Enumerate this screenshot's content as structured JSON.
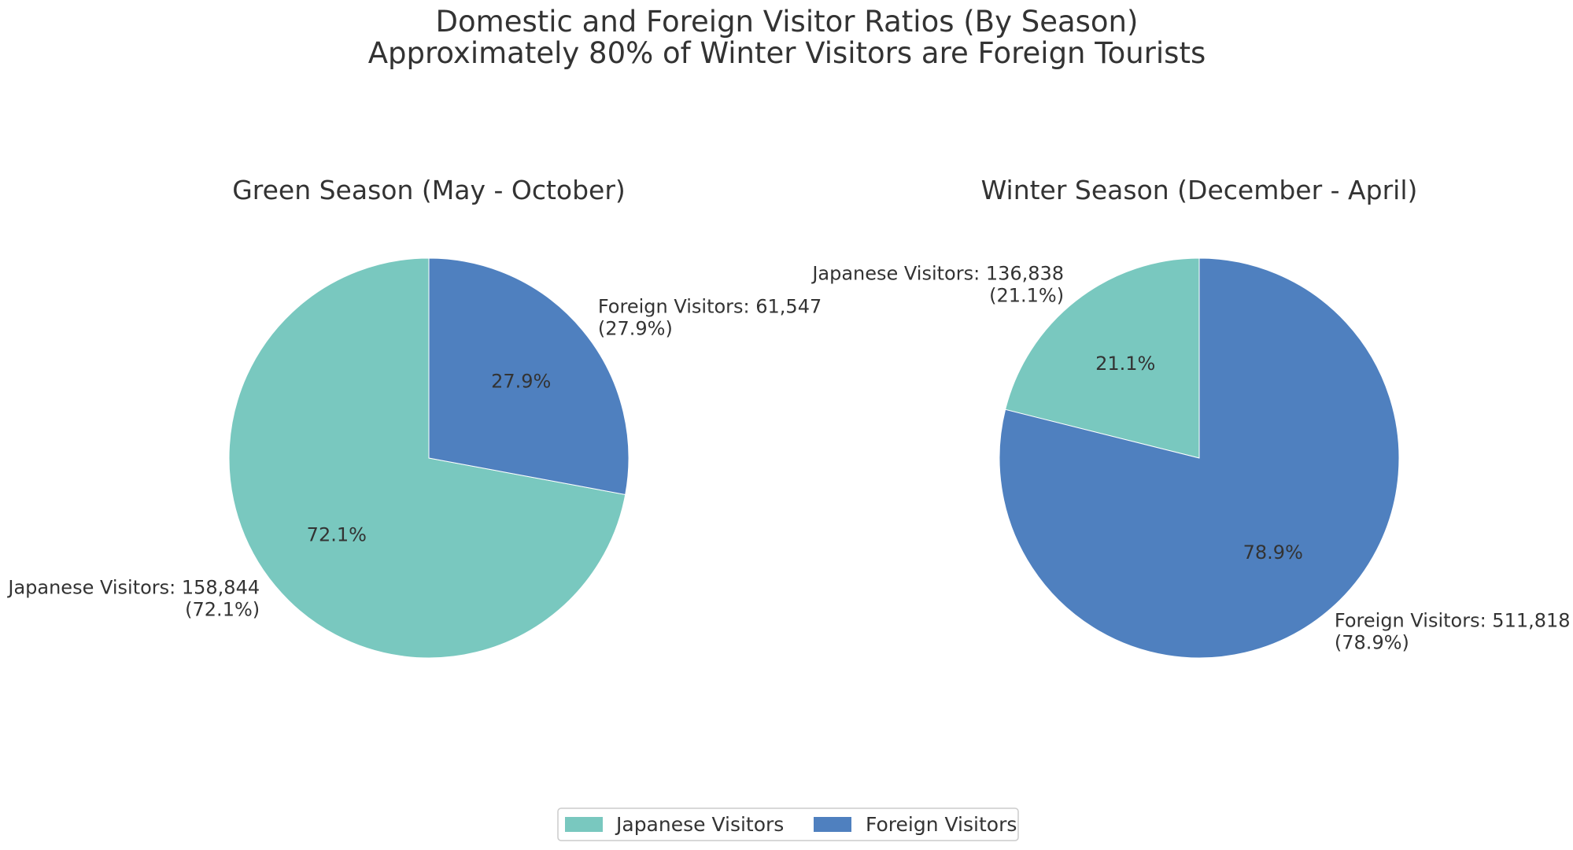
{
  "chart_data": {
    "type": "pie",
    "title_lines": [
      "Domestic and Foreign Visitor Ratios (By Season)",
      "Approximately 80% of Winter Visitors are Foreign Tourists"
    ],
    "colors": {
      "Japanese Visitors": "#79c8bf",
      "Foreign Visitors": "#4f80bf"
    },
    "legend": {
      "placement": "bottom-center",
      "entries": [
        "Japanese Visitors",
        "Foreign Visitors"
      ]
    },
    "pies": [
      {
        "title": "Green Season (May - October)",
        "slices": [
          {
            "label": "Japanese Visitors",
            "value": 158844,
            "pct_label": "72.1%",
            "outer_label_lines": [
              "Japanese Visitors: 158,844",
              "(72.1%)"
            ]
          },
          {
            "label": "Foreign Visitors",
            "value": 61547,
            "pct_label": "27.9%",
            "outer_label_lines": [
              "Foreign Visitors: 61,547",
              "(27.9%)"
            ]
          }
        ]
      },
      {
        "title": "Winter Season (December - April)",
        "slices": [
          {
            "label": "Japanese Visitors",
            "value": 136838,
            "pct_label": "21.1%",
            "outer_label_lines": [
              "Japanese Visitors: 136,838",
              "(21.1%)"
            ]
          },
          {
            "label": "Foreign Visitors",
            "value": 511818,
            "pct_label": "78.9%",
            "outer_label_lines": [
              "Foreign Visitors: 511,818",
              "(78.9%)"
            ]
          }
        ]
      }
    ]
  }
}
